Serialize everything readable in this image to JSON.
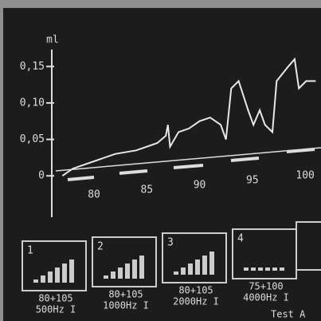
{
  "chart_data": {
    "type": "line",
    "ylabel": "ml",
    "x": [
      77,
      78,
      80,
      82,
      84,
      86,
      86.8,
      87,
      87.2,
      88,
      89,
      90,
      91,
      92,
      92.5,
      93,
      93.7,
      94.6,
      95.1,
      95.7,
      96.2,
      96.9,
      97.3,
      98.4,
      99,
      99.4,
      100.1,
      101
    ],
    "values": [
      0,
      0.01,
      0.02,
      0.03,
      0.035,
      0.045,
      0.055,
      0.07,
      0.04,
      0.06,
      0.065,
      0.075,
      0.08,
      0.07,
      0.05,
      0.12,
      0.13,
      0.09,
      0.07,
      0.09,
      0.07,
      0.06,
      0.13,
      0.15,
      0.16,
      0.12,
      0.13,
      0.13
    ],
    "color": "#e8e8e8",
    "xlim": [
      76,
      101.5
    ],
    "xticks": [
      80,
      85,
      90,
      95,
      100
    ],
    "ylim": [
      -0.06,
      0.17
    ],
    "yticks": [
      0,
      {
        "value": 0.05,
        "label": "0,05"
      },
      {
        "value": 0.1,
        "label": "0,10"
      },
      {
        "value": 0.15,
        "label": "0,15"
      }
    ]
  },
  "panels": [
    {
      "number": "1",
      "range": "80+105",
      "freq": "500Hz I"
    },
    {
      "number": "2",
      "range": "80+105",
      "freq": "1000Hz I"
    },
    {
      "number": "3",
      "range": "80+105",
      "freq": "2000Hz I"
    },
    {
      "number": "4",
      "range": "75+100",
      "freq": "4000Hz I"
    }
  ],
  "footer": "Test A"
}
